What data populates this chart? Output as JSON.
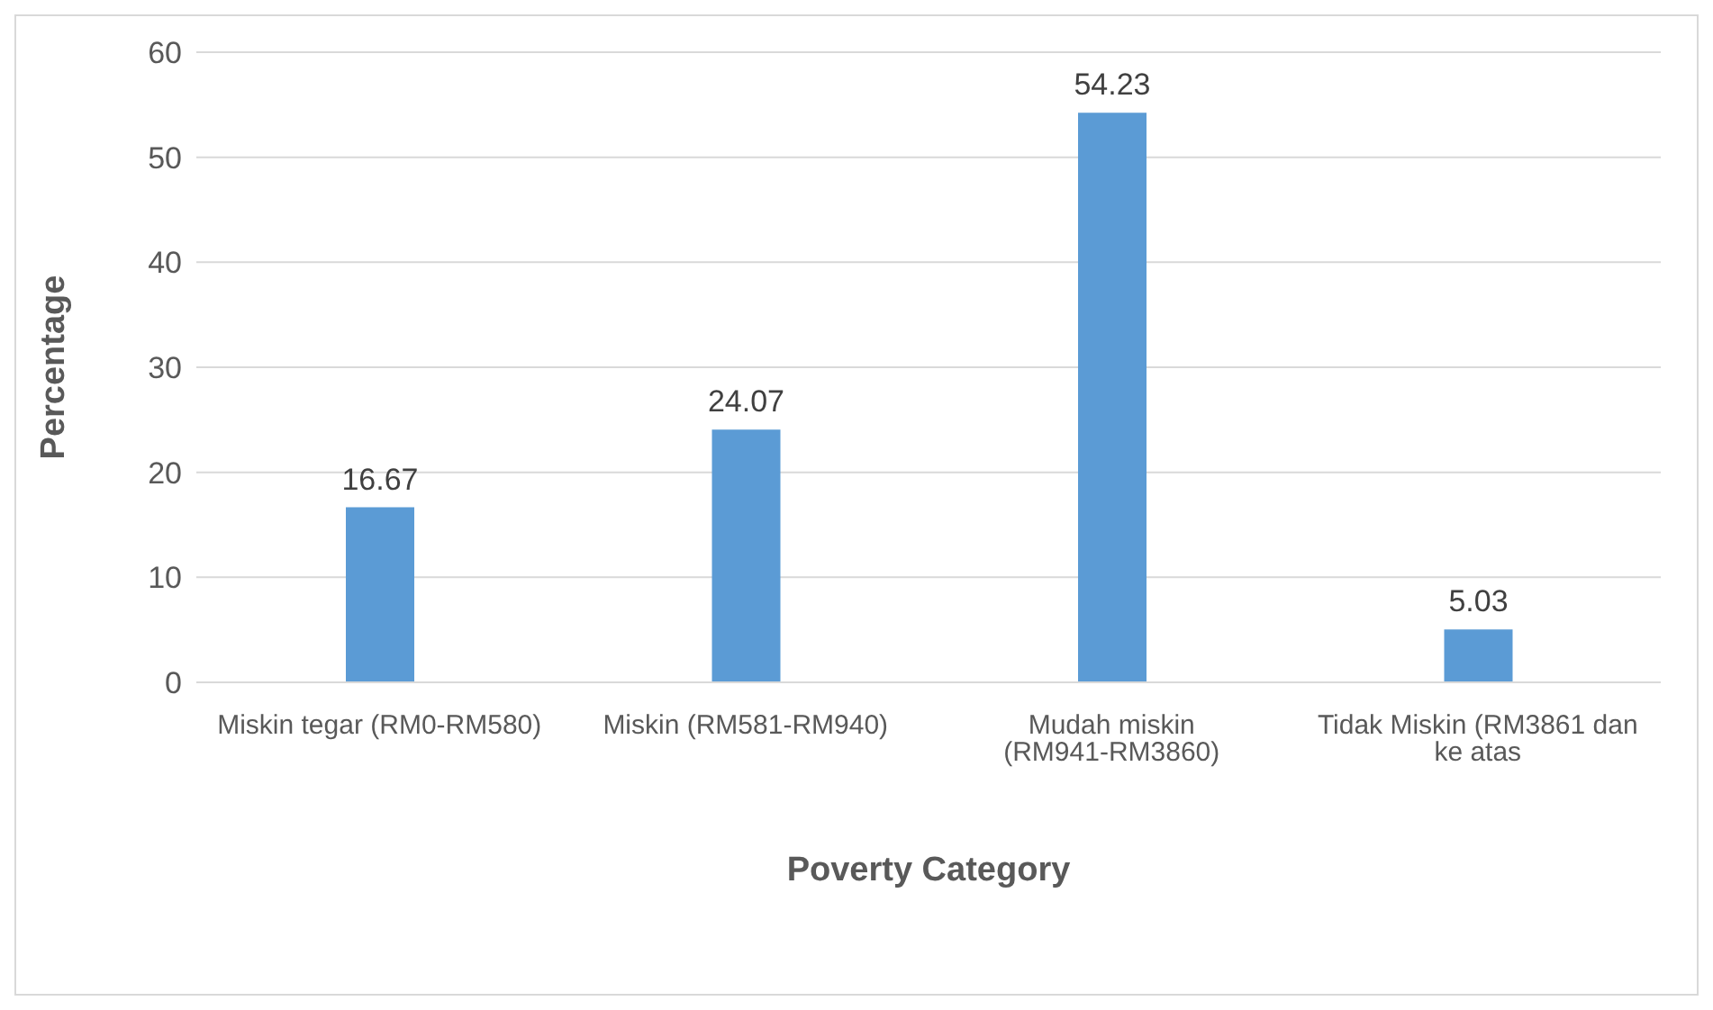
{
  "chart_data": {
    "type": "bar",
    "xlabel": "Poverty Category",
    "ylabel": "Percentage",
    "categories": [
      "Miskin tegar (RM0-RM580)",
      "Miskin (RM581-RM940)",
      "Mudah miskin (RM941-RM3860)",
      "Tidak Miskin (RM3861 dan ke atas"
    ],
    "values": [
      16.67,
      24.07,
      54.23,
      5.03
    ],
    "color": "#5b9bd5",
    "ylim": [
      0,
      60
    ],
    "yticks": [
      0,
      10,
      20,
      30,
      40,
      50,
      60
    ],
    "grid": "y",
    "data_labels": true
  }
}
